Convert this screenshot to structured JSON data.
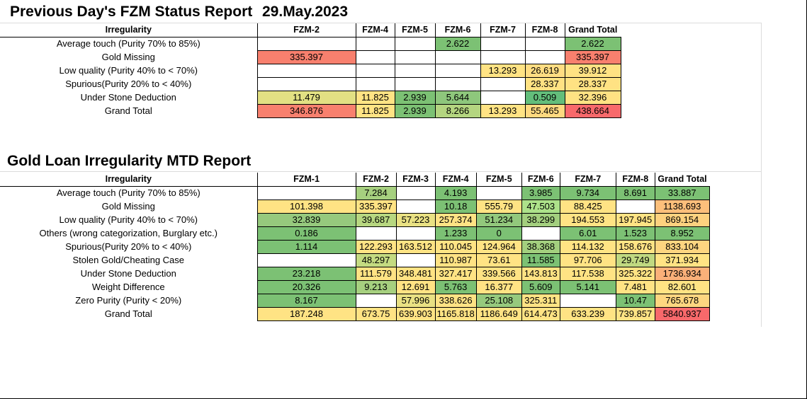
{
  "report1": {
    "title": "Previous Day's FZM Status Report",
    "date": "29.May.2023",
    "columns": [
      "Irregularity",
      "FZM-2",
      "FZM-4",
      "FZM-5",
      "FZM-6",
      "FZM-7",
      "FZM-8",
      "Grand Total"
    ],
    "rows": [
      {
        "label": "Average touch (Purity 70% to  85%)",
        "cells": [
          {
            "v": "",
            "c": ""
          },
          {
            "v": "",
            "c": ""
          },
          {
            "v": "",
            "c": ""
          },
          {
            "v": "2.622",
            "c": "#7cc174"
          },
          {
            "v": "",
            "c": ""
          },
          {
            "v": "",
            "c": ""
          },
          {
            "v": "2.622",
            "c": "#7cc174"
          }
        ]
      },
      {
        "label": "Gold Missing",
        "cells": [
          {
            "v": "335.397",
            "c": "#f8806e"
          },
          {
            "v": "",
            "c": ""
          },
          {
            "v": "",
            "c": ""
          },
          {
            "v": "",
            "c": ""
          },
          {
            "v": "",
            "c": ""
          },
          {
            "v": "",
            "c": ""
          },
          {
            "v": "335.397",
            "c": "#f8806e"
          }
        ]
      },
      {
        "label": "Low quality (Purity 40% to < 70%)",
        "cells": [
          {
            "v": "",
            "c": ""
          },
          {
            "v": "",
            "c": ""
          },
          {
            "v": "",
            "c": ""
          },
          {
            "v": "",
            "c": ""
          },
          {
            "v": "13.293",
            "c": "#ffe384"
          },
          {
            "v": "26.619",
            "c": "#ffdd82"
          },
          {
            "v": "39.912",
            "c": "#ffe283"
          }
        ]
      },
      {
        "label": "Spurious(Purity 20% to < 40%)",
        "cells": [
          {
            "v": "",
            "c": ""
          },
          {
            "v": "",
            "c": ""
          },
          {
            "v": "",
            "c": ""
          },
          {
            "v": "",
            "c": ""
          },
          {
            "v": "",
            "c": ""
          },
          {
            "v": "28.337",
            "c": "#ffe283"
          },
          {
            "v": "28.337",
            "c": "#ffe283"
          }
        ]
      },
      {
        "label": "Under Stone Deduction",
        "cells": [
          {
            "v": "11.479",
            "c": "#e2e083"
          },
          {
            "v": "11.825",
            "c": "#ffe384"
          },
          {
            "v": "2.939",
            "c": "#7cc174"
          },
          {
            "v": "5.644",
            "c": "#8ec77c"
          },
          {
            "v": "",
            "c": ""
          },
          {
            "v": "0.509",
            "c": "#63be7b"
          },
          {
            "v": "32.396",
            "c": "#ffe283"
          }
        ]
      },
      {
        "label": "Grand Total",
        "cells": [
          {
            "v": "346.876",
            "c": "#f8806e"
          },
          {
            "v": "11.825",
            "c": "#ffe384"
          },
          {
            "v": "2.939",
            "c": "#7cc174"
          },
          {
            "v": "8.266",
            "c": "#b4d580"
          },
          {
            "v": "13.293",
            "c": "#ffe384"
          },
          {
            "v": "55.465",
            "c": "#fed980"
          },
          {
            "v": "438.664",
            "c": "#f8696b"
          }
        ]
      }
    ]
  },
  "report2": {
    "title": "Gold Loan Irregularity MTD Report",
    "columns": [
      "Irregularity",
      "FZM-1",
      "FZM-2",
      "FZM-3",
      "FZM-4",
      "FZM-5",
      "FZM-6",
      "FZM-7",
      "FZM-8",
      "Grand Total"
    ],
    "rows": [
      {
        "label": "Average touch (Purity 70% to  85%)",
        "cells": [
          {
            "v": "",
            "c": ""
          },
          {
            "v": "7.284",
            "c": "#a6d07f"
          },
          {
            "v": "",
            "c": ""
          },
          {
            "v": "4.193",
            "c": "#7cc174"
          },
          {
            "v": "",
            "c": ""
          },
          {
            "v": "3.985",
            "c": "#7cc174"
          },
          {
            "v": "9.734",
            "c": "#7cc174"
          },
          {
            "v": "8.691",
            "c": "#7cc174"
          },
          {
            "v": "33.887",
            "c": "#7cc174"
          }
        ]
      },
      {
        "label": "Gold Missing",
        "cells": [
          {
            "v": "101.398",
            "c": "#ffe384"
          },
          {
            "v": "335.397",
            "c": "#ffe384"
          },
          {
            "v": "",
            "c": ""
          },
          {
            "v": "10.18",
            "c": "#7cc174"
          },
          {
            "v": "555.79",
            "c": "#ffe384"
          },
          {
            "v": "47.503",
            "c": "#ade28a"
          },
          {
            "v": "88.425",
            "c": "#ffe384"
          },
          {
            "v": "",
            "c": ""
          },
          {
            "v": "1138.693",
            "c": "#fcbf7b"
          }
        ]
      },
      {
        "label": "Low quality (Purity 40% to < 70%)",
        "cells": [
          {
            "v": "32.839",
            "c": "#96c97d"
          },
          {
            "v": "39.687",
            "c": "#b7d780"
          },
          {
            "v": "57.223",
            "c": "#e9e183"
          },
          {
            "v": "257.374",
            "c": "#ffe384"
          },
          {
            "v": "51.234",
            "c": "#92c87c"
          },
          {
            "v": "38.299",
            "c": "#a3cf7e"
          },
          {
            "v": "194.553",
            "c": "#ffe384"
          },
          {
            "v": "197.945",
            "c": "#ffe384"
          },
          {
            "v": "869.154",
            "c": "#fdd17f"
          }
        ]
      },
      {
        "label": "Others  (wrong categorization, Burglary etc.)",
        "cells": [
          {
            "v": "0.186",
            "c": "#7cc174"
          },
          {
            "v": "",
            "c": ""
          },
          {
            "v": "",
            "c": ""
          },
          {
            "v": "1.233",
            "c": "#7cc174"
          },
          {
            "v": "0",
            "c": "#7cc174"
          },
          {
            "v": "",
            "c": ""
          },
          {
            "v": "6.01",
            "c": "#7cc174"
          },
          {
            "v": "1.523",
            "c": "#7cc174"
          },
          {
            "v": "8.952",
            "c": "#7cc174"
          }
        ]
      },
      {
        "label": "Spurious(Purity 20% to < 40%)",
        "cells": [
          {
            "v": "1.114",
            "c": "#7cc174"
          },
          {
            "v": "122.293",
            "c": "#ffe384"
          },
          {
            "v": "163.512",
            "c": "#ffe384"
          },
          {
            "v": "110.045",
            "c": "#ffe384"
          },
          {
            "v": "124.964",
            "c": "#ffe384"
          },
          {
            "v": "38.368",
            "c": "#a3cf7e"
          },
          {
            "v": "114.132",
            "c": "#ffe384"
          },
          {
            "v": "158.676",
            "c": "#ffe384"
          },
          {
            "v": "833.104",
            "c": "#fdd580"
          }
        ]
      },
      {
        "label": "Stolen Gold/Cheating Case",
        "cells": [
          {
            "v": "",
            "c": ""
          },
          {
            "v": "48.297",
            "c": "#c4db81"
          },
          {
            "v": "",
            "c": ""
          },
          {
            "v": "110.987",
            "c": "#ffe384"
          },
          {
            "v": "73.61",
            "c": "#ffe384"
          },
          {
            "v": "11.585",
            "c": "#7cc174"
          },
          {
            "v": "97.706",
            "c": "#ffe384"
          },
          {
            "v": "29.749",
            "c": "#c0d981"
          },
          {
            "v": "371.934",
            "c": "#ffe384"
          }
        ]
      },
      {
        "label": "Under Stone Deduction",
        "cells": [
          {
            "v": "23.218",
            "c": "#7cc174"
          },
          {
            "v": "111.579",
            "c": "#ffe384"
          },
          {
            "v": "348.481",
            "c": "#ffe384"
          },
          {
            "v": "327.417",
            "c": "#ffe384"
          },
          {
            "v": "339.566",
            "c": "#ffe384"
          },
          {
            "v": "143.813",
            "c": "#ffe384"
          },
          {
            "v": "117.538",
            "c": "#ffe384"
          },
          {
            "v": "325.322",
            "c": "#ffe384"
          },
          {
            "v": "1736.934",
            "c": "#fab079"
          }
        ]
      },
      {
        "label": "Weight Difference",
        "cells": [
          {
            "v": "20.326",
            "c": "#7cc174"
          },
          {
            "v": "9.213",
            "c": "#a6d07f"
          },
          {
            "v": "12.691",
            "c": "#ffe384"
          },
          {
            "v": "5.763",
            "c": "#7cc174"
          },
          {
            "v": "16.377",
            "c": "#ffe384"
          },
          {
            "v": "5.609",
            "c": "#7cc174"
          },
          {
            "v": "5.141",
            "c": "#7cc174"
          },
          {
            "v": "7.481",
            "c": "#ffe384"
          },
          {
            "v": "82.601",
            "c": "#ffe384"
          }
        ]
      },
      {
        "label": "Zero Purity  (Purity < 20%)",
        "cells": [
          {
            "v": "8.167",
            "c": "#7cc174"
          },
          {
            "v": "",
            "c": ""
          },
          {
            "v": "57.996",
            "c": "#e9e183"
          },
          {
            "v": "338.626",
            "c": "#ffe384"
          },
          {
            "v": "25.108",
            "c": "#96c97d"
          },
          {
            "v": "325.311",
            "c": "#ffe384"
          },
          {
            "v": "",
            "c": ""
          },
          {
            "v": "10.47",
            "c": "#7cc174"
          },
          {
            "v": "765.678",
            "c": "#fdd680"
          }
        ]
      },
      {
        "label": "Grand Total",
        "cells": [
          {
            "v": "187.248",
            "c": "#ffe384"
          },
          {
            "v": "673.75",
            "c": "#ffe384"
          },
          {
            "v": "639.903",
            "c": "#ffe384"
          },
          {
            "v": "1165.818",
            "c": "#ffe384"
          },
          {
            "v": "1186.649",
            "c": "#ffe384"
          },
          {
            "v": "614.473",
            "c": "#ffe384"
          },
          {
            "v": "633.239",
            "c": "#ffe384"
          },
          {
            "v": "739.857",
            "c": "#ffe384"
          },
          {
            "v": "5840.937",
            "c": "#f8696b"
          }
        ]
      }
    ]
  }
}
